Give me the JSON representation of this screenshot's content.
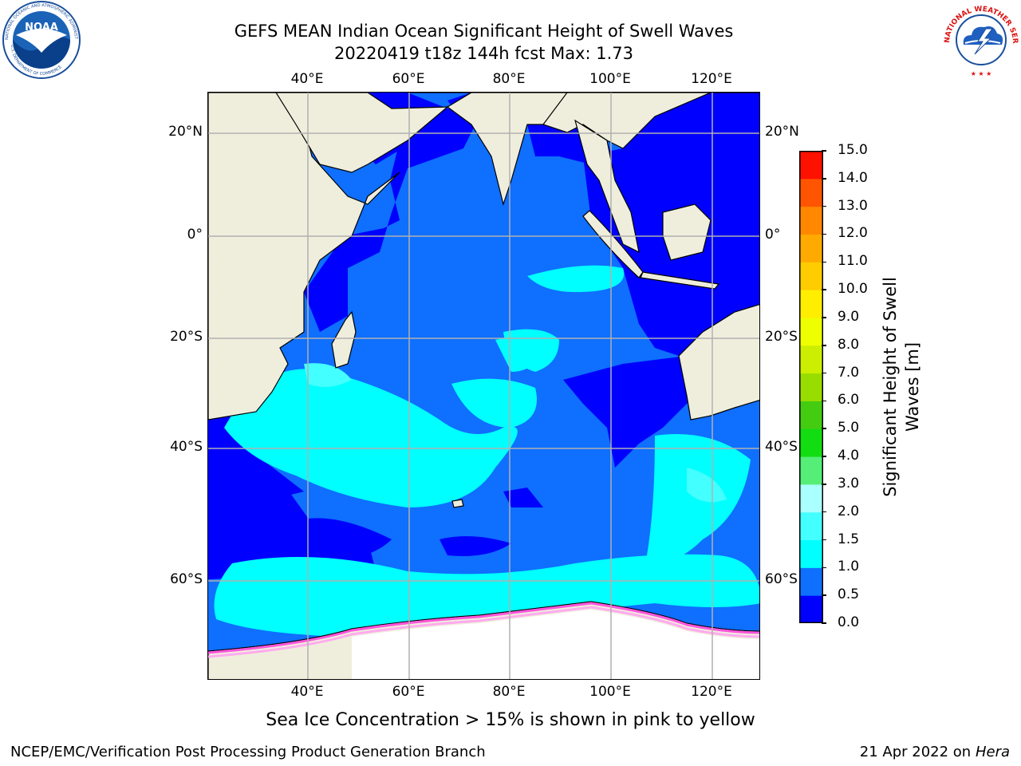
{
  "title_line1": "GEFS MEAN Indian Ocean Significant Height of Swell Waves",
  "title_line2": "20220419 t18z 144h fcst   Max: 1.73",
  "map": {
    "lon_labels": [
      "40°E",
      "60°E",
      "80°E",
      "100°E",
      "120°E"
    ],
    "lat_labels": [
      "20°N",
      "0°",
      "20°S",
      "40°S",
      "60°S"
    ],
    "colors": {
      "land": "#efeedd",
      "ice": "#ffffff",
      "ice_edge": [
        "#ff55dd",
        "#ffaaee",
        "#ffcc33"
      ],
      "grid": "#b0b0b0"
    }
  },
  "colorbar": {
    "title_line1": "Significant Height of Swell",
    "title_line2": "Waves [m]",
    "tick_labels": [
      "0.0",
      "0.5",
      "1.0",
      "1.5",
      "2.0",
      "3.0",
      "4.0",
      "5.0",
      "6.0",
      "7.0",
      "8.0",
      "9.0",
      "10.0",
      "11.0",
      "12.0",
      "13.0",
      "14.0",
      "15.0"
    ],
    "colors": [
      "#0000ff",
      "#0f6fff",
      "#00ffff",
      "#44ffff",
      "#aaffff",
      "#55ee77",
      "#11dd11",
      "#44cc11",
      "#99dd00",
      "#ccee00",
      "#eeff00",
      "#ffee00",
      "#ffcc00",
      "#ffaa00",
      "#ff8800",
      "#ff5500",
      "#ff1100"
    ]
  },
  "logos": {
    "left": {
      "text": "NOAA",
      "ring": "NATIONAL OCEANIC AND ATMOSPHERIC ADMINISTRATION",
      "sub": "U.S. DEPARTMENT OF COMMERCE"
    },
    "right": {
      "ring": "NATIONAL WEATHER SERVICE"
    }
  },
  "caption": "Sea Ice Concentration > 15% is shown in pink to yellow",
  "credit_left": "NCEP/EMC/Verification Post Processing Product Generation Branch",
  "credit_date": "21 Apr 2022 on ",
  "credit_host": "Hera"
}
